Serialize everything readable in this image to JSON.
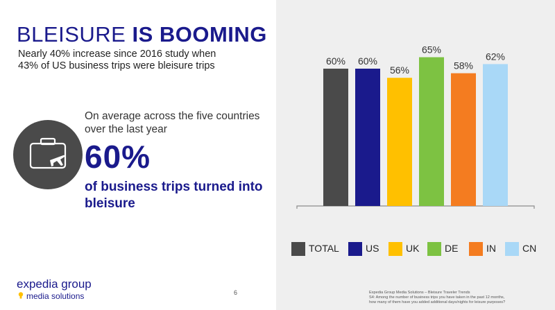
{
  "slide": {
    "title_light": "BLEISURE ",
    "title_bold": "IS BOOMING",
    "subtitle_line1": "Nearly 40% increase since 2016 study when",
    "subtitle_line2": "43% of US business trips were bleisure trips",
    "average_line1": "On average across the five countries",
    "average_line2": "over the last year",
    "big_percent": "60%",
    "business_line1": "of business trips turned into",
    "business_line2": "bleisure",
    "brand_name": "expedia group",
    "brand_sub": "media solutions",
    "page_number": "6",
    "source_line1": "Expedia Group Media Solutions – Bleisure Traveler Trends",
    "source_line2": "S4: Among the number of business trips you have taken in the past 12 months,",
    "source_line3": "how many of them have you added additional days/nights for leisure purposes?",
    "icons": [
      "briefcase-airplane-icon",
      "lightbulb-icon"
    ]
  },
  "chart_data": {
    "type": "bar",
    "categories": [
      "TOTAL",
      "US",
      "UK",
      "DE",
      "IN",
      "CN"
    ],
    "values": [
      60,
      60,
      56,
      65,
      58,
      62
    ],
    "data_labels": [
      "60%",
      "60%",
      "56%",
      "65%",
      "58%",
      "62%"
    ],
    "colors": [
      "#4a4a4a",
      "#1a1a8c",
      "#ffc000",
      "#7dc242",
      "#f47c20",
      "#a9d8f7"
    ],
    "legend_position": "bottom",
    "grid": false
  }
}
